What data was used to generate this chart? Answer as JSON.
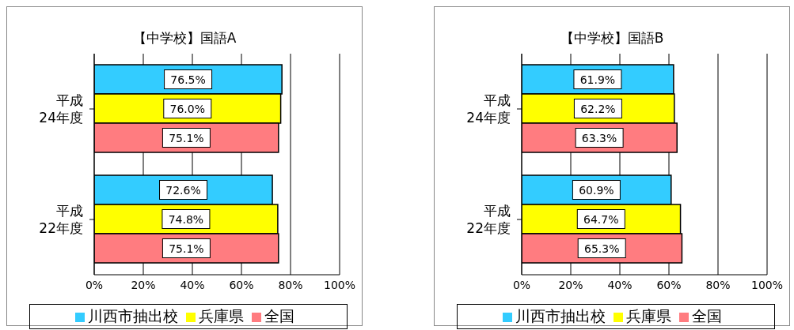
{
  "chart_data": [
    {
      "type": "bar",
      "orientation": "horizontal",
      "title": "【中学校】国語A",
      "categories": [
        "平成\n24年度",
        "平成\n22年度"
      ],
      "series": [
        {
          "name": "川西市抽出校",
          "color": "#33ccff",
          "values": [
            76.5,
            72.6
          ],
          "value_labels": [
            "76.5%",
            "72.6%"
          ]
        },
        {
          "name": "兵庫県",
          "color": "#ffff00",
          "values": [
            76.0,
            74.8
          ],
          "value_labels": [
            "76.0%",
            "74.8%"
          ]
        },
        {
          "name": "全国",
          "color": "#ff7c80",
          "values": [
            75.1,
            75.1
          ],
          "value_labels": [
            "75.1%",
            "75.1%"
          ]
        }
      ],
      "xlim": [
        0,
        100
      ],
      "xticks": [
        {
          "value": 0,
          "label": "0%"
        },
        {
          "value": 20,
          "label": "20%"
        },
        {
          "value": 40,
          "label": "40%"
        },
        {
          "value": 60,
          "label": "60%"
        },
        {
          "value": 80,
          "label": "80%"
        },
        {
          "value": 100,
          "label": "100%"
        }
      ],
      "grid": "x",
      "legend": "bottom"
    },
    {
      "type": "bar",
      "orientation": "horizontal",
      "title": "【中学校】国語B",
      "categories": [
        "平成\n24年度",
        "平成\n22年度"
      ],
      "series": [
        {
          "name": "川西市抽出校",
          "color": "#33ccff",
          "values": [
            61.9,
            60.9
          ],
          "value_labels": [
            "61.9%",
            "60.9%"
          ]
        },
        {
          "name": "兵庫県",
          "color": "#ffff00",
          "values": [
            62.2,
            64.7
          ],
          "value_labels": [
            "62.2%",
            "64.7%"
          ]
        },
        {
          "name": "全国",
          "color": "#ff7c80",
          "values": [
            63.3,
            65.3
          ],
          "value_labels": [
            "63.3%",
            "65.3%"
          ]
        }
      ],
      "xlim": [
        0,
        100
      ],
      "xticks": [
        {
          "value": 0,
          "label": "0%"
        },
        {
          "value": 20,
          "label": "20%"
        },
        {
          "value": 40,
          "label": "40%"
        },
        {
          "value": 60,
          "label": "60%"
        },
        {
          "value": 80,
          "label": "80%"
        },
        {
          "value": 100,
          "label": "100%"
        }
      ],
      "grid": "x",
      "legend": "bottom"
    }
  ]
}
